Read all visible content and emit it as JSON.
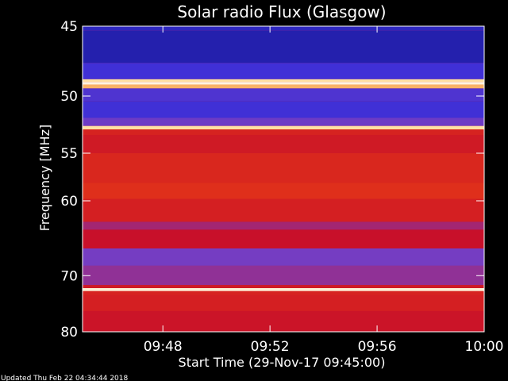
{
  "chart_data": {
    "type": "heatmap",
    "title": "Solar radio Flux (Glasgow)",
    "xlabel": "Start Time (29-Nov-17 09:45:00)",
    "ylabel": "Frequency [MHz]",
    "x_ticks": [
      "09:48",
      "09:52",
      "09:56",
      "10:00"
    ],
    "x_tick_minutes": [
      3,
      7,
      11,
      15
    ],
    "xlim_minutes_after_start": [
      0,
      15
    ],
    "y_ticks": [
      45,
      50,
      55,
      60,
      70,
      80
    ],
    "ylim": [
      45,
      80
    ],
    "y_scale": "reciprocal",
    "colormap": [
      "#1a1a9a",
      "#3b2fd8",
      "#7a3ec0",
      "#c8102a",
      "#e0301a",
      "#ffd27a",
      "#fff4e0"
    ],
    "bands": [
      {
        "f_from": 45.0,
        "f_to": 45.3,
        "level": 0.1
      },
      {
        "f_from": 45.3,
        "f_to": 47.5,
        "level": 0.05
      },
      {
        "f_from": 47.5,
        "f_to": 48.7,
        "level": 0.18
      },
      {
        "f_from": 48.7,
        "f_to": 48.9,
        "level": 0.9
      },
      {
        "f_from": 48.9,
        "f_to": 49.1,
        "level": 1.0
      },
      {
        "f_from": 49.1,
        "f_to": 49.4,
        "level": 0.8
      },
      {
        "f_from": 49.4,
        "f_to": 50.4,
        "level": 0.22
      },
      {
        "f_from": 50.4,
        "f_to": 51.8,
        "level": 0.18
      },
      {
        "f_from": 51.8,
        "f_to": 52.5,
        "level": 0.3
      },
      {
        "f_from": 52.5,
        "f_to": 52.8,
        "level": 0.9
      },
      {
        "f_from": 52.8,
        "f_to": 53.3,
        "level": 0.6
      },
      {
        "f_from": 53.3,
        "f_to": 55.0,
        "level": 0.55
      },
      {
        "f_from": 55.0,
        "f_to": 58.0,
        "level": 0.62
      },
      {
        "f_from": 58.0,
        "f_to": 59.8,
        "level": 0.66
      },
      {
        "f_from": 59.8,
        "f_to": 62.5,
        "level": 0.58
      },
      {
        "f_from": 62.5,
        "f_to": 63.5,
        "level": 0.42
      },
      {
        "f_from": 63.5,
        "f_to": 66.0,
        "level": 0.5
      },
      {
        "f_from": 66.0,
        "f_to": 68.5,
        "level": 0.32
      },
      {
        "f_from": 68.5,
        "f_to": 71.5,
        "level": 0.38
      },
      {
        "f_from": 71.5,
        "f_to": 72.0,
        "level": 0.55
      },
      {
        "f_from": 72.0,
        "f_to": 72.5,
        "level": 0.98
      },
      {
        "f_from": 72.5,
        "f_to": 73.2,
        "level": 0.6
      },
      {
        "f_from": 73.2,
        "f_to": 76.0,
        "level": 0.58
      },
      {
        "f_from": 76.0,
        "f_to": 80.0,
        "level": 0.52
      }
    ],
    "grid": false
  },
  "footer": {
    "updated": "Updated Thu Feb 22 04:34:44 2018"
  }
}
